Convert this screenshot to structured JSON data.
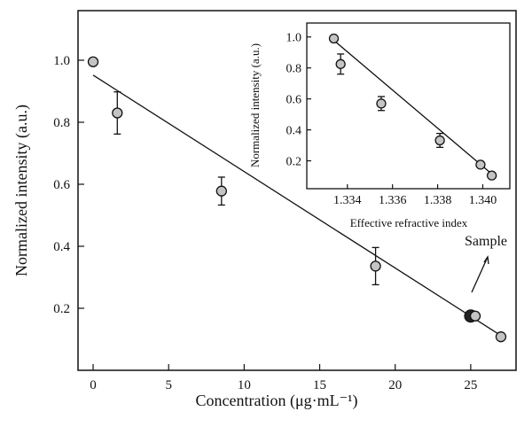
{
  "chart_data": [
    {
      "type": "scatter",
      "xlabel": "Concentration (μg·mL⁻¹)",
      "ylabel": "Normalized intensity (a.u.)",
      "xlim": [
        -1,
        28
      ],
      "ylim": [
        0.0,
        1.16
      ],
      "xticks": [
        0,
        5,
        10,
        15,
        20,
        25
      ],
      "yticks": [
        0.2,
        0.4,
        0.6,
        0.8,
        1.0
      ],
      "xtick_labels": [
        "0",
        "5",
        "10",
        "15",
        "20",
        "25"
      ],
      "ytick_labels": [
        "0.2",
        "0.4",
        "0.6",
        "0.8",
        "1.0"
      ],
      "grid": false,
      "points": [
        {
          "x": 0,
          "y": 0.995,
          "err": 0
        },
        {
          "x": 1.6,
          "y": 0.83,
          "err": 0.068
        },
        {
          "x": 8.5,
          "y": 0.578,
          "err": 0.045
        },
        {
          "x": 18.7,
          "y": 0.336,
          "err": 0.06
        },
        {
          "x": 25.3,
          "y": 0.175,
          "err": 0
        },
        {
          "x": 27.0,
          "y": 0.108,
          "err": 0
        }
      ],
      "highlight_point": {
        "x": 25.0,
        "y": 0.175
      },
      "fit_line": {
        "x": [
          0,
          27.0
        ],
        "y": [
          0.952,
          0.112
        ]
      },
      "annotation": {
        "text": "Sample"
      }
    },
    {
      "type": "scatter",
      "xlabel": "Effective refractive index",
      "ylabel": "Normalized intensity (a.u.)",
      "xlim": [
        1.3322,
        1.3412
      ],
      "ylim": [
        0.02,
        1.09
      ],
      "xticks": [
        1.334,
        1.336,
        1.338,
        1.34
      ],
      "yticks": [
        0.2,
        0.4,
        0.6,
        0.8,
        1.0
      ],
      "xtick_labels": [
        "1.334",
        "1.336",
        "1.338",
        "1.340"
      ],
      "ytick_labels": [
        "0.2",
        "0.4",
        "0.6",
        "0.8",
        "1.0"
      ],
      "grid": false,
      "points": [
        {
          "x": 1.3334,
          "y": 0.99,
          "err": 0
        },
        {
          "x": 1.3337,
          "y": 0.825,
          "err": 0.065
        },
        {
          "x": 1.3355,
          "y": 0.57,
          "err": 0.045
        },
        {
          "x": 1.3381,
          "y": 0.332,
          "err": 0.045
        },
        {
          "x": 1.3399,
          "y": 0.175,
          "err": 0
        },
        {
          "x": 1.3404,
          "y": 0.105,
          "err": 0
        }
      ],
      "fit_line": {
        "x": [
          1.3333,
          1.3404
        ],
        "y": [
          0.99,
          0.115
        ]
      }
    }
  ]
}
